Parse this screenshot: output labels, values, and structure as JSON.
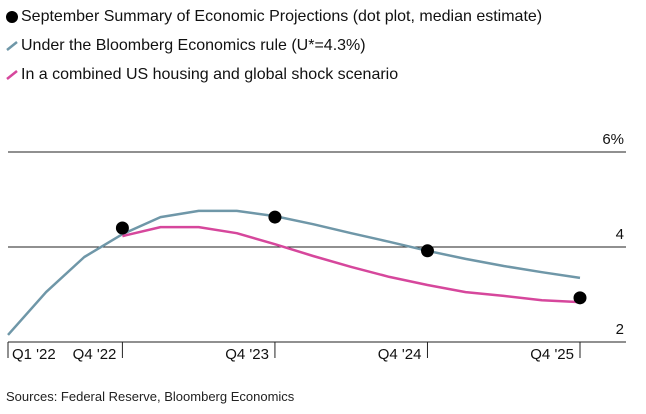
{
  "chart_data": {
    "type": "line",
    "categories": [
      "Q1 '22",
      null,
      null,
      "Q4 '22",
      null,
      null,
      null,
      "Q4 '23",
      null,
      null,
      null,
      "Q4 '24",
      null,
      null,
      null,
      "Q4 '25"
    ],
    "series": [
      {
        "name": "September Summary of Economic Projections (dot plot, median estimate)",
        "color": "#000000",
        "mode": "markers",
        "values": [
          null,
          null,
          null,
          4.4,
          null,
          null,
          null,
          4.63,
          null,
          null,
          null,
          3.92,
          null,
          null,
          null,
          2.93
        ]
      },
      {
        "name": "Under the Bloomberg Economics rule (U*=4.3%)",
        "color": "#6f97a8",
        "mode": "line",
        "values": [
          2.15,
          3.05,
          3.79,
          4.27,
          4.63,
          4.76,
          4.76,
          4.65,
          4.48,
          4.29,
          4.11,
          3.92,
          3.75,
          3.6,
          3.47,
          3.35
        ]
      },
      {
        "name": "In a combined US housing and global shock scenario",
        "color": "#d6479c",
        "mode": "line",
        "values": [
          null,
          null,
          null,
          4.23,
          4.42,
          4.42,
          4.29,
          4.06,
          3.81,
          3.58,
          3.37,
          3.2,
          3.05,
          2.97,
          2.88,
          2.84
        ]
      }
    ],
    "ylim": [
      2,
      6
    ],
    "yticks": [
      2,
      4,
      {
        "value": 6,
        "label": "6%"
      }
    ],
    "grid": true,
    "legend": "top-left",
    "source": "Sources: Federal Reserve, Bloomberg Economics"
  }
}
